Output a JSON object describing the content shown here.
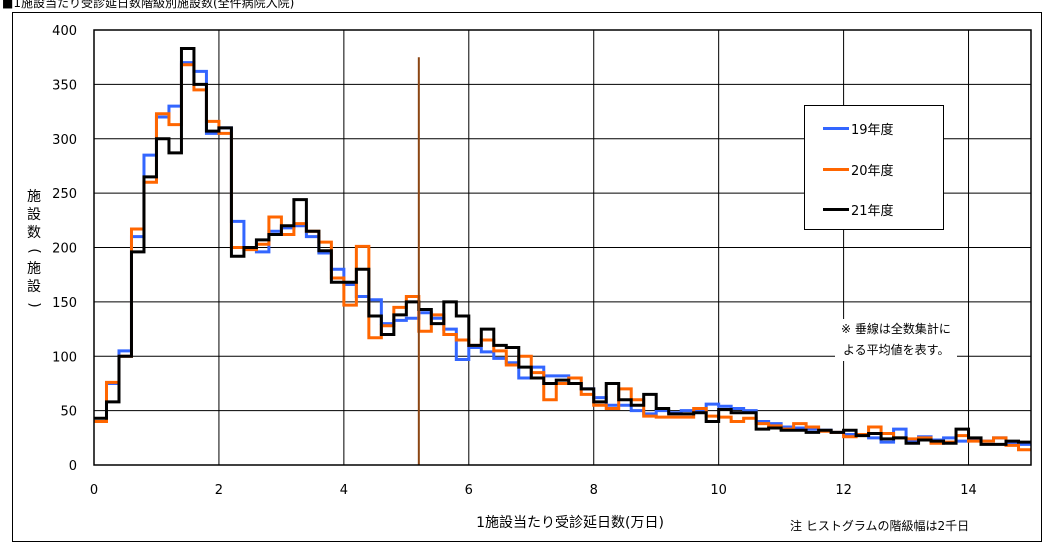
{
  "header": {
    "title": "■1施設当たり受診延日数階級別施設数(全件病院入院)"
  },
  "notes": {
    "mean_line_note": "※ 垂線は全数集計による平均値を表す。",
    "mean_line_note_1": "※ 垂線は全数集計に",
    "mean_line_note_2": "よる平均値を表す。",
    "bin_width_note": "注 ヒストグラムの階級幅は2千日"
  },
  "chart_data": {
    "type": "step-histogram",
    "title": "■1施設当たり受診延日数階級別施設数(全件病院入院)",
    "xlabel": "1施設当たり受診延日数(万日)",
    "ylabel": "施設数(施設)",
    "xlim": [
      0,
      15
    ],
    "ylim": [
      0,
      400
    ],
    "x_ticks": [
      "0",
      "2",
      "4",
      "6",
      "8",
      "10",
      "12",
      "14"
    ],
    "y_ticks": [
      "0",
      "50",
      "100",
      "150",
      "200",
      "250",
      "300",
      "350",
      "400"
    ],
    "grid": true,
    "legend_position": "right",
    "bin_width": 0.2,
    "bin_starts": [
      0.0,
      0.2,
      0.4,
      0.6,
      0.8,
      1.0,
      1.2,
      1.4,
      1.6,
      1.8,
      2.0,
      2.2,
      2.4,
      2.6,
      2.8,
      3.0,
      3.2,
      3.4,
      3.6,
      3.8,
      4.0,
      4.2,
      4.4,
      4.6,
      4.8,
      5.0,
      5.2,
      5.4,
      5.6,
      5.8,
      6.0,
      6.2,
      6.4,
      6.6,
      6.8,
      7.0,
      7.2,
      7.4,
      7.6,
      7.8,
      8.0,
      8.2,
      8.4,
      8.6,
      8.8,
      9.0,
      9.2,
      9.4,
      9.6,
      9.8,
      10.0,
      10.2,
      10.4,
      10.6,
      10.8,
      11.0,
      11.2,
      11.4,
      11.6,
      11.8,
      12.0,
      12.2,
      12.4,
      12.6,
      12.8,
      13.0,
      13.2,
      13.4,
      13.6,
      13.8,
      14.0,
      14.2,
      14.4,
      14.6,
      14.8
    ],
    "mean_line": {
      "x": 5.2,
      "color": "#8B4513"
    },
    "series": [
      {
        "name": "19年度",
        "color": "#3366FF",
        "values": [
          40,
          75,
          105,
          210,
          285,
          320,
          330,
          370,
          362,
          305,
          310,
          224,
          200,
          196,
          215,
          218,
          220,
          210,
          195,
          180,
          166,
          155,
          152,
          130,
          133,
          135,
          140,
          135,
          125,
          97,
          108,
          104,
          98,
          94,
          80,
          90,
          82,
          82,
          75,
          70,
          62,
          55,
          55,
          50,
          47,
          50,
          48,
          50,
          50,
          56,
          54,
          52,
          50,
          40,
          38,
          35,
          34,
          33,
          32,
          30,
          28,
          28,
          25,
          21,
          33,
          22,
          26,
          23,
          25,
          22,
          24,
          22,
          25,
          20,
          19
        ]
      },
      {
        "name": "20年度",
        "color": "#FF6600",
        "values": [
          40,
          76,
          100,
          217,
          260,
          323,
          313,
          368,
          345,
          316,
          305,
          200,
          198,
          203,
          228,
          212,
          222,
          215,
          205,
          172,
          147,
          201,
          117,
          128,
          145,
          155,
          123,
          138,
          120,
          115,
          110,
          115,
          105,
          92,
          100,
          85,
          60,
          75,
          80,
          65,
          55,
          52,
          70,
          60,
          45,
          44,
          44,
          44,
          52,
          45,
          44,
          40,
          43,
          38,
          36,
          33,
          38,
          35,
          31,
          30,
          26,
          28,
          35,
          29,
          25,
          24,
          25,
          20,
          21,
          27,
          22,
          22,
          25,
          18,
          14
        ]
      },
      {
        "name": "21年度",
        "color": "#000000",
        "values": [
          43,
          58,
          100,
          196,
          265,
          300,
          287,
          383,
          350,
          307,
          310,
          192,
          200,
          207,
          212,
          220,
          244,
          215,
          197,
          168,
          168,
          180,
          137,
          120,
          138,
          150,
          143,
          130,
          150,
          137,
          110,
          125,
          110,
          108,
          90,
          80,
          75,
          78,
          75,
          70,
          58,
          75,
          60,
          55,
          65,
          52,
          47,
          47,
          48,
          40,
          51,
          48,
          48,
          33,
          34,
          32,
          32,
          30,
          32,
          30,
          32,
          27,
          29,
          24,
          25,
          20,
          23,
          22,
          20,
          33,
          25,
          19,
          19,
          22,
          21
        ]
      }
    ]
  }
}
